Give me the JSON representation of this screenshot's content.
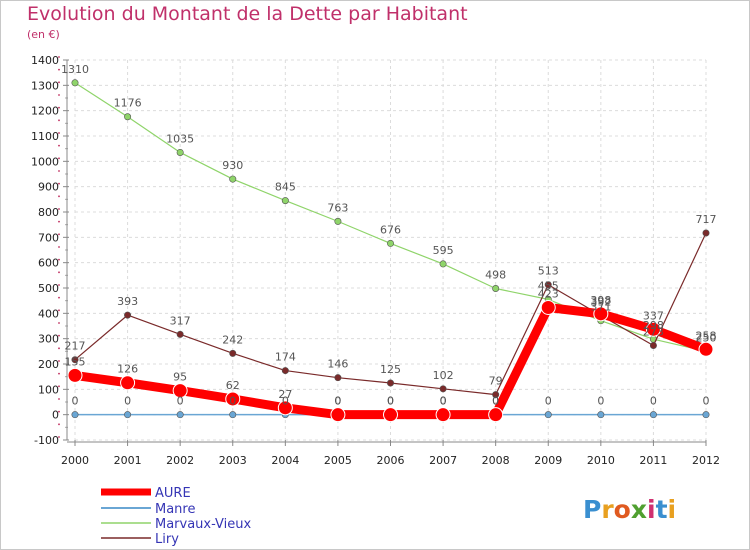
{
  "chart_data": {
    "type": "line",
    "title": "Evolution du Montant de la Dette par Habitant",
    "subtitle": "(en €)",
    "xlabel": "",
    "ylabel": "",
    "x": [
      "2000",
      "2001",
      "2002",
      "2003",
      "2004",
      "2005",
      "2006",
      "2007",
      "2008",
      "2009",
      "2010",
      "2011",
      "2012"
    ],
    "ylim": [
      -100,
      1400
    ],
    "yticks": [
      -100,
      0,
      100,
      200,
      300,
      400,
      500,
      600,
      700,
      800,
      900,
      1000,
      1100,
      1200,
      1300,
      1400
    ],
    "grid": true,
    "legend": "bottom-left",
    "series": [
      {
        "name": "AURE",
        "color": "#ff0000",
        "values": [
          155,
          126,
          95,
          62,
          27,
          0,
          0,
          0,
          0,
          423,
          398,
          337,
          258
        ]
      },
      {
        "name": "Manre",
        "color": "#6aa6d4",
        "values": [
          0,
          0,
          0,
          0,
          0,
          0,
          0,
          0,
          0,
          0,
          0,
          0,
          0
        ]
      },
      {
        "name": "Marvaux-Vieux",
        "color": "#8fd46a",
        "values": [
          1310,
          1176,
          1035,
          930,
          845,
          763,
          676,
          595,
          498,
          455,
          371,
          298,
          250
        ]
      },
      {
        "name": "Liry",
        "color": "#7a2a2a",
        "values": [
          217,
          393,
          317,
          242,
          174,
          146,
          125,
          102,
          79,
          513,
          392,
          273,
          717
        ]
      }
    ]
  }
}
